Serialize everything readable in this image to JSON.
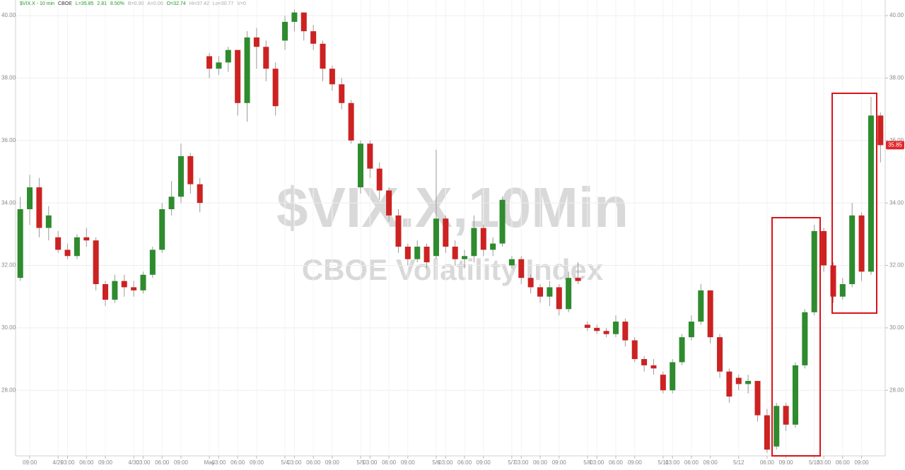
{
  "chart_data": {
    "type": "candlestick",
    "header": [
      {
        "text": "$VIX.X - 10 min",
        "color": "#1f9a1f"
      },
      {
        "text": "CBOE",
        "color": "#333333"
      },
      {
        "text": "L=35.85",
        "color": "#1f9a1f"
      },
      {
        "text": "2.81",
        "color": "#1f9a1f"
      },
      {
        "text": "8.50%",
        "color": "#1f9a1f"
      },
      {
        "text": "B=0.00",
        "color": "#aaaaaa"
      },
      {
        "text": "A=0.00",
        "color": "#aaaaaa"
      },
      {
        "text": "O=32.74",
        "color": "#1f9a1f"
      },
      {
        "text": "Hi=37.42",
        "color": "#aaaaaa"
      },
      {
        "text": "Lo=30.77",
        "color": "#aaaaaa"
      },
      {
        "text": "V=0",
        "color": "#aaaaaa"
      }
    ],
    "title": "$VIX.X,10Min",
    "subtitle": "CBOE Volatility Index",
    "up_color": "#2e8b2e",
    "down_color": "#cc2222",
    "categories": [
      null,
      "09:00",
      null,
      null,
      "4/29",
      "03:00",
      null,
      "06:00",
      null,
      "09:00",
      null,
      null,
      "4/30",
      "03:00",
      null,
      "06:00",
      null,
      "09:00",
      null,
      null,
      "May",
      "03:00",
      null,
      "06:00",
      null,
      "09:00",
      null,
      null,
      "5/4",
      "03:00",
      null,
      "06:00",
      null,
      "09:00",
      null,
      null,
      "5/5",
      "03:00",
      null,
      "06:00",
      null,
      "09:00",
      null,
      null,
      "5/6",
      "03:00",
      null,
      "06:00",
      null,
      "09:00",
      null,
      null,
      "5/7",
      "03:00",
      null,
      "06:00",
      null,
      "09:00",
      null,
      null,
      "5/8",
      "03:00",
      null,
      "06:00",
      null,
      "09:00",
      null,
      null,
      "5/11",
      "03:00",
      null,
      "06:00",
      null,
      "09:00",
      null,
      null,
      "5/12",
      null,
      null,
      "06:00",
      null,
      "09:00",
      null,
      null,
      "5/13",
      "03:00",
      null,
      "06:00",
      null,
      "09:00",
      null,
      null
    ],
    "open": [
      31.6,
      33.8,
      34.5,
      33.2,
      32.9,
      32.5,
      32.3,
      32.9,
      32.8,
      31.4,
      30.9,
      31.5,
      31.3,
      31.2,
      31.7,
      32.5,
      33.8,
      34.2,
      35.5,
      34.6,
      38.7,
      38.3,
      38.5,
      38.9,
      37.2,
      39.3,
      39.0,
      38.3,
      39.2,
      39.8,
      40.1,
      39.5,
      39.1,
      38.3,
      37.8,
      37.2,
      34.5,
      35.9,
      35.1,
      34.4,
      33.6,
      32.6,
      32.2,
      32.6,
      32.3,
      33.5,
      32.6,
      32.2,
      32.3,
      33.2,
      32.5,
      32.7,
      32.0,
      32.2,
      31.6,
      31.3,
      31.0,
      31.3,
      30.6,
      31.6,
      30.1,
      30.0,
      29.9,
      29.8,
      30.2,
      29.6,
      29.0,
      28.8,
      28.5,
      28.0,
      28.9,
      29.7,
      30.2,
      31.2,
      29.7,
      28.6,
      28.4,
      28.2,
      28.3,
      27.2,
      26.2,
      27.5,
      26.9,
      28.8,
      30.5,
      33.1,
      32.0,
      31.0,
      31.4,
      33.6,
      31.8,
      36.8
    ],
    "high": [
      34.2,
      34.9,
      34.8,
      33.9,
      33.1,
      32.7,
      33.0,
      33.2,
      32.9,
      31.5,
      31.7,
      31.7,
      31.5,
      31.8,
      32.6,
      34.0,
      34.7,
      35.9,
      35.6,
      34.8,
      38.8,
      38.7,
      39.0,
      38.9,
      39.5,
      39.6,
      39.2,
      38.5,
      40.0,
      40.2,
      40.0,
      39.7,
      39.2,
      38.4,
      38.0,
      37.3,
      36.0,
      36.0,
      35.3,
      34.5,
      33.8,
      32.7,
      32.8,
      32.7,
      35.7,
      33.6,
      32.8,
      32.5,
      33.6,
      33.3,
      32.9,
      34.2,
      32.3,
      32.3,
      31.7,
      31.4,
      31.5,
      31.4,
      31.8,
      32.1,
      30.2,
      30.1,
      30.0,
      30.4,
      30.3,
      29.7,
      29.1,
      29.0,
      28.6,
      29.0,
      29.8,
      30.4,
      31.4,
      31.2,
      29.8,
      28.7,
      28.5,
      28.5,
      28.3,
      27.4,
      27.6,
      27.6,
      28.9,
      30.6,
      33.3,
      33.2,
      32.1,
      31.6,
      34.0,
      33.7,
      37.4,
      36.9
    ],
    "low": [
      31.5,
      33.3,
      32.9,
      32.8,
      32.4,
      32.2,
      32.2,
      32.6,
      31.2,
      30.7,
      30.8,
      31.0,
      31.0,
      31.1,
      31.6,
      32.4,
      33.6,
      34.0,
      34.3,
      33.7,
      38.0,
      38.1,
      38.2,
      36.8,
      36.6,
      38.3,
      37.9,
      36.8,
      38.9,
      39.5,
      39.2,
      38.9,
      37.9,
      37.6,
      37.0,
      35.9,
      34.3,
      34.8,
      34.1,
      33.4,
      32.4,
      32.0,
      32.1,
      31.9,
      32.2,
      32.4,
      32.0,
      31.9,
      32.1,
      32.3,
      32.3,
      32.6,
      31.9,
      31.4,
      31.1,
      30.8,
      30.7,
      30.4,
      30.5,
      31.4,
      29.9,
      29.8,
      29.7,
      29.7,
      29.4,
      28.9,
      28.6,
      28.5,
      27.9,
      27.9,
      28.8,
      29.6,
      30.1,
      29.5,
      28.4,
      27.6,
      28.0,
      27.9,
      27.0,
      26.0,
      26.1,
      26.7,
      26.8,
      28.7,
      30.4,
      31.8,
      30.8,
      30.9,
      31.3,
      31.5,
      31.7,
      35.3
    ],
    "close": [
      33.8,
      34.5,
      33.2,
      33.6,
      32.5,
      32.3,
      32.9,
      32.8,
      31.4,
      30.9,
      31.5,
      31.3,
      31.2,
      31.7,
      32.5,
      33.8,
      34.2,
      35.5,
      34.6,
      34.0,
      38.3,
      38.5,
      38.9,
      37.2,
      39.3,
      39.0,
      38.3,
      37.1,
      39.8,
      40.1,
      39.5,
      39.1,
      38.3,
      37.8,
      37.2,
      36.0,
      35.9,
      35.1,
      34.4,
      33.6,
      32.6,
      32.2,
      32.6,
      32.1,
      33.5,
      32.6,
      32.2,
      32.3,
      33.2,
      32.5,
      32.7,
      34.1,
      32.2,
      31.6,
      31.3,
      31.0,
      31.3,
      30.6,
      31.6,
      31.5,
      30.0,
      29.9,
      29.8,
      30.2,
      29.6,
      29.0,
      28.8,
      28.7,
      28.0,
      28.9,
      29.7,
      30.2,
      31.2,
      29.7,
      28.6,
      27.8,
      28.2,
      28.3,
      27.2,
      26.1,
      27.5,
      26.9,
      28.8,
      30.5,
      33.1,
      32.0,
      31.0,
      31.4,
      33.6,
      31.8,
      36.8,
      35.85
    ],
    "ylim": [
      25.9,
      40.5
    ],
    "yticks": [
      {
        "value": 28,
        "label": "28.00"
      },
      {
        "value": 30,
        "label": "30.00"
      },
      {
        "value": 32,
        "label": "32.00"
      },
      {
        "value": 34,
        "label": "34.00"
      },
      {
        "value": 36,
        "label": "36.00"
      },
      {
        "value": 38,
        "label": "38.00"
      },
      {
        "value": 40,
        "label": "40.00"
      }
    ],
    "grid": true
  }
}
